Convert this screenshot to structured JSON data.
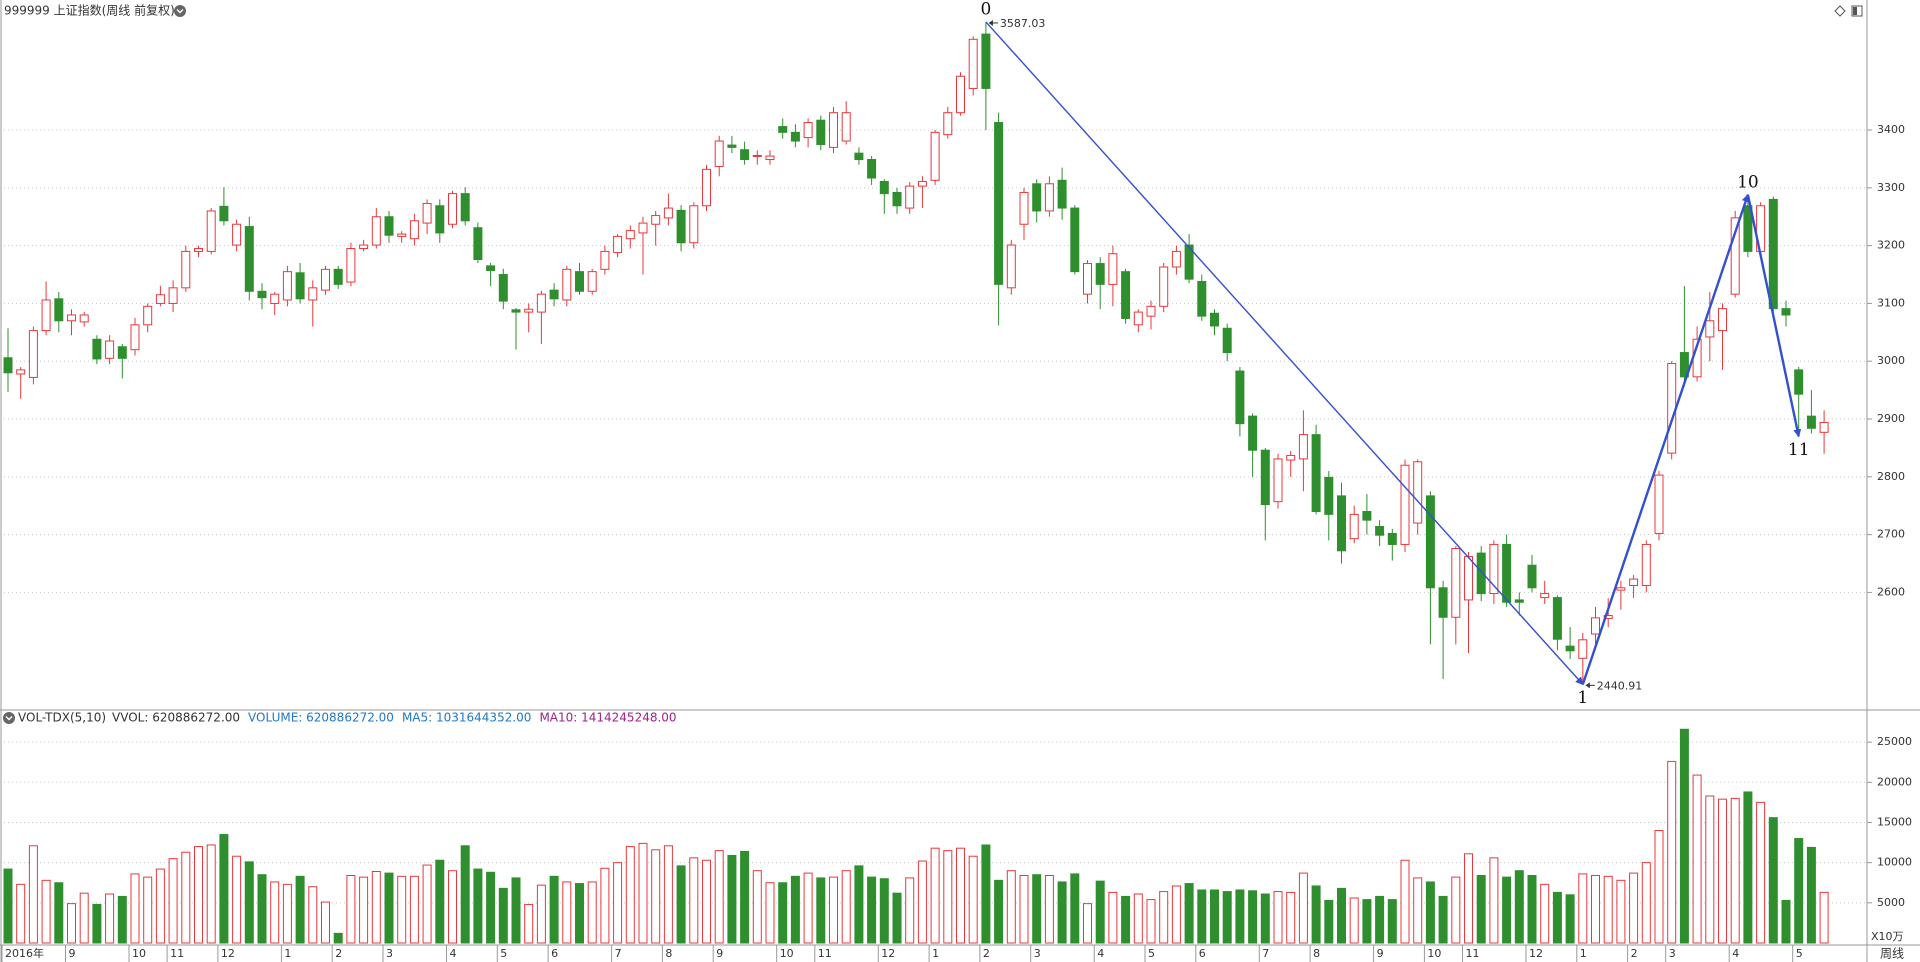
{
  "chart_data": {
    "type": "candlestick",
    "title": "999999 上证指数(周线 前复权)",
    "categories": [
      "2016年",
      null,
      null,
      null,
      null,
      "9",
      null,
      null,
      null,
      null,
      "10",
      null,
      null,
      "11",
      null,
      null,
      null,
      "12",
      null,
      null,
      null,
      null,
      "1",
      null,
      null,
      null,
      "2",
      null,
      null,
      null,
      "3",
      null,
      null,
      null,
      null,
      "4",
      null,
      null,
      null,
      "5",
      null,
      null,
      null,
      "6",
      null,
      null,
      null,
      null,
      "7",
      null,
      null,
      null,
      "8",
      null,
      null,
      null,
      "9",
      null,
      null,
      null,
      null,
      "10",
      null,
      null,
      "11",
      null,
      null,
      null,
      null,
      "12",
      null,
      null,
      null,
      "1",
      null,
      null,
      null,
      "2",
      null,
      null,
      null,
      "3",
      null,
      null,
      null,
      null,
      "4",
      null,
      null,
      null,
      "5",
      null,
      null,
      null,
      "6",
      null,
      null,
      null,
      null,
      "7",
      null,
      null,
      null,
      "8",
      null,
      null,
      null,
      null,
      "9",
      null,
      null,
      null,
      "10",
      null,
      null,
      "11",
      null,
      null,
      null,
      null,
      "12",
      null,
      null,
      null,
      "1",
      null,
      null,
      null,
      "2",
      null,
      null,
      "3",
      null,
      null,
      null,
      null,
      "4",
      null,
      null,
      null,
      null,
      "5",
      null,
      null
    ],
    "open": [
      3006,
      2978,
      2972,
      3053,
      3108,
      3070,
      3068,
      3038,
      3005,
      3025,
      3020,
      3063,
      3100,
      3100,
      3127,
      3190,
      3190,
      3268,
      3201,
      3233,
      3121,
      3100,
      3106,
      3153,
      3106,
      3123,
      3159,
      3137,
      3195,
      3201,
      3250,
      3216,
      3212,
      3239,
      3269,
      3237,
      3290,
      3231,
      3165,
      3150,
      3089,
      3085,
      3085,
      3123,
      3106,
      3155,
      3121,
      3159,
      3188,
      3212,
      3222,
      3237,
      3248,
      3261,
      3205,
      3269,
      3337,
      3374,
      3366,
      3355,
      3349,
      3406,
      3396,
      3387,
      3417,
      3370,
      3381,
      3360,
      3349,
      3311,
      3292,
      3265,
      3303,
      3313,
      3392,
      3430,
      3472,
      3566,
      3413,
      3127,
      3237,
      3307,
      3260,
      3313,
      3265,
      3116,
      3169,
      3133,
      3155,
      3063,
      3078,
      3095,
      3163,
      3201,
      3138,
      3083,
      3057,
      2983,
      2905,
      2846,
      2757,
      2829,
      2831,
      2873,
      2799,
      2767,
      2693,
      2740,
      2714,
      2702,
      2683,
      2720,
      2767,
      2608,
      2557,
      2587,
      2668,
      2598,
      2683,
      2587,
      2647,
      2591,
      2591,
      2507,
      2486,
      2528,
      2555,
      2604,
      2612,
      2612,
      2702,
      2841,
      3015,
      2973,
      3042,
      3053,
      3116,
      3269,
      3190,
      3280,
      3091,
      2985,
      2905,
      2877
    ],
    "high": [
      3057,
      2990,
      3060,
      3138,
      3120,
      3090,
      3085,
      3045,
      3045,
      3030,
      3075,
      3100,
      3130,
      3140,
      3200,
      3200,
      3265,
      3301,
      3245,
      3250,
      3135,
      3120,
      3165,
      3170,
      3140,
      3165,
      3165,
      3205,
      3210,
      3265,
      3260,
      3225,
      3255,
      3280,
      3280,
      3295,
      3301,
      3240,
      3170,
      3160,
      3092,
      3100,
      3122,
      3135,
      3165,
      3170,
      3160,
      3200,
      3220,
      3235,
      3250,
      3260,
      3290,
      3270,
      3275,
      3340,
      3390,
      3390,
      3380,
      3365,
      3365,
      3420,
      3410,
      3420,
      3425,
      3440,
      3450,
      3370,
      3355,
      3315,
      3300,
      3310,
      3320,
      3400,
      3440,
      3500,
      3562,
      3587.03,
      3430,
      3210,
      3300,
      3315,
      3320,
      3335,
      3270,
      3175,
      3180,
      3200,
      3160,
      3090,
      3105,
      3170,
      3200,
      3220,
      3150,
      3090,
      3065,
      2990,
      2910,
      2850,
      2840,
      2845,
      2915,
      2890,
      2810,
      2790,
      2750,
      2770,
      2725,
      2710,
      2830,
      2830,
      2775,
      2620,
      2680,
      2670,
      2680,
      2690,
      2700,
      2600,
      2665,
      2620,
      2595,
      2540,
      2530,
      2575,
      2590,
      2620,
      2630,
      2690,
      2810,
      3000,
      3130,
      3060,
      3120,
      3100,
      3260,
      3288,
      3275,
      3285,
      3105,
      2990,
      2950,
      2915
    ],
    "low": [
      2947,
      2935,
      2960,
      3045,
      3050,
      3045,
      3060,
      2995,
      2995,
      2970,
      3010,
      3050,
      3095,
      3085,
      3120,
      3180,
      3185,
      3235,
      3190,
      3105,
      3090,
      3080,
      3095,
      3100,
      3060,
      3115,
      3125,
      3130,
      3190,
      3195,
      3205,
      3205,
      3200,
      3220,
      3205,
      3230,
      3235,
      3170,
      3130,
      3090,
      3020,
      3050,
      3030,
      3095,
      3095,
      3115,
      3115,
      3150,
      3180,
      3195,
      3150,
      3200,
      3235,
      3190,
      3195,
      3260,
      3320,
      3360,
      3340,
      3340,
      3340,
      3385,
      3370,
      3370,
      3365,
      3360,
      3375,
      3340,
      3305,
      3255,
      3255,
      3255,
      3265,
      3305,
      3385,
      3425,
      3460,
      3400,
      3062,
      3115,
      3210,
      3240,
      3250,
      3245,
      3150,
      3100,
      3090,
      3095,
      3065,
      3050,
      3055,
      3085,
      3150,
      3135,
      3070,
      3045,
      3000,
      2870,
      2800,
      2690,
      2745,
      2800,
      2775,
      2735,
      2690,
      2650,
      2685,
      2700,
      2680,
      2655,
      2670,
      2700,
      2510,
      2450,
      2510,
      2495,
      2585,
      2580,
      2575,
      2560,
      2600,
      2580,
      2500,
      2485,
      2440.91,
      2510,
      2540,
      2570,
      2590,
      2600,
      2690,
      2830,
      2960,
      2965,
      3000,
      2985,
      3110,
      3180,
      3185,
      3085,
      3060,
      2870,
      2875,
      2840
    ],
    "close": [
      2980,
      2985,
      3053,
      3106,
      3070,
      3080,
      3080,
      3004,
      3035,
      3005,
      3063,
      3095,
      3115,
      3127,
      3190,
      3195,
      3260,
      3243,
      3237,
      3121,
      3110,
      3116,
      3155,
      3108,
      3127,
      3159,
      3133,
      3195,
      3201,
      3250,
      3218,
      3220,
      3243,
      3273,
      3222,
      3290,
      3243,
      3176,
      3157,
      3104,
      3085,
      3090,
      3116,
      3108,
      3159,
      3121,
      3155,
      3190,
      3216,
      3226,
      3239,
      3252,
      3265,
      3205,
      3269,
      3332,
      3381,
      3370,
      3349,
      3356,
      3355,
      3396,
      3381,
      3413,
      3375,
      3430,
      3430,
      3349,
      3317,
      3290,
      3269,
      3303,
      3311,
      3396,
      3430,
      3493,
      3557,
      3472,
      3133,
      3201,
      3292,
      3260,
      3307,
      3265,
      3155,
      3169,
      3133,
      3186,
      3074,
      3085,
      3095,
      3163,
      3190,
      3142,
      3078,
      3061,
      3015,
      2892,
      2846,
      2752,
      2831,
      2837,
      2873,
      2740,
      2735,
      2672,
      2735,
      2725,
      2699,
      2683,
      2820,
      2826,
      2608,
      2557,
      2676,
      2662,
      2598,
      2683,
      2583,
      2583,
      2608,
      2598,
      2519,
      2499,
      2518,
      2556,
      2560,
      2608,
      2623,
      2683,
      2803,
      2996,
      2973,
      3038,
      3070,
      3091,
      3248,
      3190,
      3269,
      3091,
      3080,
      2943,
      2884,
      2894
    ],
    "ylim": [
      2400,
      3625
    ],
    "yticks": [
      2600,
      2700,
      2800,
      2900,
      3000,
      3100,
      3200,
      3300,
      3400
    ],
    "grid": true,
    "up_color": "#e8383d",
    "down_color": "#2f8f2f",
    "wave_color": "#3350d0",
    "waves": [
      {
        "label": "0",
        "index": 77,
        "price": 3587.03
      },
      {
        "label": "1",
        "index": 124,
        "price": 2440.91
      },
      {
        "label": "10",
        "index": 137
      },
      {
        "label": "11",
        "index": 141
      }
    ],
    "volume_panel": {
      "title": "VOL-TDX(5,10)",
      "items": [
        {
          "text": "VVOL: 620886272.00",
          "color": "#333333"
        },
        {
          "text": "VOLUME: 620886272.00",
          "color": "#1f78c8"
        },
        {
          "text": "MA5: 1031644352.00",
          "color": "#1f78c8"
        },
        {
          "text": "MA10: 1414245248.00",
          "color": "#a0208e"
        }
      ],
      "unit": "X10万",
      "values": [
        9200,
        7300,
        12100,
        7800,
        7500,
        4900,
        6200,
        4800,
        6100,
        5800,
        8600,
        8200,
        9200,
        10500,
        11300,
        12000,
        12200,
        13500,
        10800,
        10100,
        8500,
        7600,
        7300,
        8300,
        7000,
        5100,
        1200,
        8400,
        8200,
        8900,
        8700,
        8300,
        8300,
        9700,
        10300,
        9000,
        12100,
        9200,
        8800,
        6800,
        8100,
        4800,
        7200,
        8300,
        7600,
        7400,
        7600,
        9300,
        10000,
        12000,
        12400,
        11600,
        12100,
        9600,
        10600,
        10300,
        11500,
        10900,
        11400,
        9000,
        7500,
        7500,
        8300,
        8700,
        8100,
        8200,
        9000,
        9600,
        8200,
        8000,
        6200,
        8100,
        10200,
        11800,
        11500,
        11800,
        10800,
        12200,
        7800,
        9000,
        8400,
        8500,
        8400,
        7600,
        8600,
        4900,
        7700,
        6300,
        5800,
        6100,
        5400,
        6400,
        7100,
        7400,
        6600,
        6600,
        6400,
        6600,
        6500,
        6100,
        6400,
        6300,
        8700,
        7100,
        5300,
        6800,
        5600,
        5400,
        5800,
        5400,
        10300,
        8100,
        7600,
        5800,
        8200,
        11100,
        8400,
        10600,
        8200,
        9000,
        8400,
        7300,
        6300,
        6000,
        8600,
        8400,
        8300,
        7800,
        8700,
        10000,
        14000,
        22600,
        26600,
        20900,
        18300,
        17900,
        18000,
        18800,
        17500,
        15600,
        5300,
        13000,
        11900,
        6300
      ],
      "ylim": [
        0,
        29000
      ],
      "yticks": [
        5000,
        10000,
        15000,
        20000,
        25000
      ]
    },
    "period": "周线"
  }
}
